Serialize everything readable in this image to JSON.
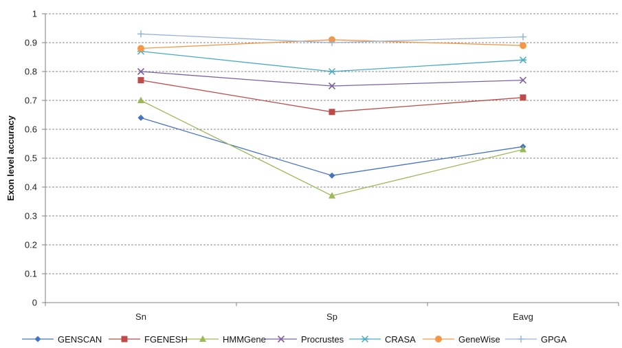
{
  "chart_data": {
    "type": "line",
    "title": "",
    "xlabel": "",
    "ylabel": "Exon level accuracy",
    "categories": [
      "Sn",
      "Sp",
      "Eavg"
    ],
    "ylim": [
      0,
      1
    ],
    "yticks": [
      0,
      0.1,
      0.2,
      0.3,
      0.4,
      0.5,
      0.6,
      0.7,
      0.8,
      0.9,
      1
    ],
    "ytick_labels": [
      "0",
      "0.1",
      "0.2",
      "0.3",
      "0.4",
      "0.5",
      "0.6",
      "0.7",
      "0.8",
      "0.9",
      "1"
    ],
    "grid": "horizontal dashed",
    "legend_position": "bottom",
    "series": [
      {
        "name": "GENSCAN",
        "values": [
          0.64,
          0.44,
          0.54
        ],
        "color": "#4472c4",
        "marker": "diamond"
      },
      {
        "name": "FGENESH",
        "values": [
          0.77,
          0.66,
          0.71
        ],
        "color": "#be4b48",
        "marker": "square"
      },
      {
        "name": "HMMGene",
        "values": [
          0.7,
          0.37,
          0.53
        ],
        "color": "#98b954",
        "marker": "triangle"
      },
      {
        "name": "Procrustes",
        "values": [
          0.8,
          0.75,
          0.77
        ],
        "color": "#7d60a0",
        "marker": "x"
      },
      {
        "name": "CRASA",
        "values": [
          0.87,
          0.8,
          0.84
        ],
        "color": "#46aac5",
        "marker": "asterisk"
      },
      {
        "name": "GeneWise",
        "values": [
          0.88,
          0.91,
          0.89
        ],
        "color": "#f79646",
        "marker": "circle"
      },
      {
        "name": "GPGA",
        "values": [
          0.93,
          0.9,
          0.92
        ],
        "color": "#95b3d7",
        "marker": "plus"
      }
    ]
  }
}
